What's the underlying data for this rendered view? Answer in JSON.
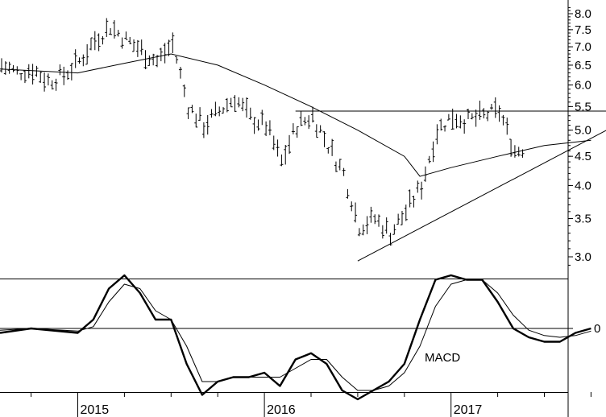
{
  "chart_data": [
    {
      "type": "ohlc",
      "panel": "price",
      "y_scale": "log",
      "ylim": [
        2.75,
        8.3
      ],
      "ytick_labels": [
        "8.0",
        "7.5",
        "7.0",
        "6.5",
        "6.0",
        "5.5",
        "5.0",
        "4.5",
        "4.0",
        "3.5",
        "3.0"
      ],
      "ytick_values": [
        8.0,
        7.5,
        7.0,
        6.5,
        6.0,
        5.5,
        5.0,
        4.5,
        4.0,
        3.5,
        3.0
      ],
      "xlim": [
        "2014-08",
        "2017-11"
      ],
      "xtick_labels": [
        "2015",
        "2016",
        "2017"
      ],
      "xtick_values": [
        "2015-01",
        "2016-01",
        "2017-01"
      ],
      "x_minor_ticks": [
        "2014-10",
        "2015-04",
        "2015-07",
        "2015-10",
        "2016-04",
        "2016-07",
        "2016-10",
        "2017-04",
        "2017-07",
        "2017-10"
      ],
      "close_anchors": [
        {
          "date": "2014-08",
          "close": 6.5
        },
        {
          "date": "2014-09",
          "close": 6.3
        },
        {
          "date": "2014-10",
          "close": 6.4
        },
        {
          "date": "2014-11",
          "close": 6.1
        },
        {
          "date": "2014-12",
          "close": 6.25
        },
        {
          "date": "2015-01",
          "close": 6.6
        },
        {
          "date": "2015-02",
          "close": 7.2
        },
        {
          "date": "2015-03",
          "close": 7.6
        },
        {
          "date": "2015-04",
          "close": 7.2
        },
        {
          "date": "2015-05",
          "close": 6.9
        },
        {
          "date": "2015-06",
          "close": 6.6
        },
        {
          "date": "2015-07",
          "close": 7.1
        },
        {
          "date": "2015-08",
          "close": 5.5
        },
        {
          "date": "2015-09",
          "close": 5.1
        },
        {
          "date": "2015-10",
          "close": 5.4
        },
        {
          "date": "2015-11",
          "close": 5.7
        },
        {
          "date": "2015-12",
          "close": 5.25
        },
        {
          "date": "2016-01",
          "close": 5.1
        },
        {
          "date": "2016-02",
          "close": 4.4
        },
        {
          "date": "2016-03",
          "close": 5.1
        },
        {
          "date": "2016-04",
          "close": 5.3
        },
        {
          "date": "2016-05",
          "close": 4.7
        },
        {
          "date": "2016-06",
          "close": 4.2
        },
        {
          "date": "2016-07",
          "close": 3.4
        },
        {
          "date": "2016-08",
          "close": 3.5
        },
        {
          "date": "2016-09",
          "close": 3.3
        },
        {
          "date": "2016-10",
          "close": 3.6
        },
        {
          "date": "2016-11",
          "close": 4.0
        },
        {
          "date": "2016-12",
          "close": 5.0
        },
        {
          "date": "2017-01",
          "close": 5.3
        },
        {
          "date": "2017-02",
          "close": 5.2
        },
        {
          "date": "2017-03",
          "close": 5.3
        },
        {
          "date": "2017-04",
          "close": 5.4
        },
        {
          "date": "2017-05",
          "close": 4.6
        },
        {
          "date": "2017-06",
          "close": 4.7
        },
        {
          "date": "2017-07",
          "close": 4.9
        },
        {
          "date": "2017-08",
          "close": 4.4
        },
        {
          "date": "2017-09",
          "close": 4.6
        },
        {
          "date": "2017-10",
          "close": 4.8
        }
      ],
      "moving_average": [
        {
          "date": "2014-08",
          "value": 6.4
        },
        {
          "date": "2015-01",
          "value": 6.3
        },
        {
          "date": "2015-04",
          "value": 6.55
        },
        {
          "date": "2015-07",
          "value": 6.8
        },
        {
          "date": "2015-10",
          "value": 6.5
        },
        {
          "date": "2016-01",
          "value": 6.0
        },
        {
          "date": "2016-04",
          "value": 5.5
        },
        {
          "date": "2016-07",
          "value": 5.0
        },
        {
          "date": "2016-10",
          "value": 4.5
        },
        {
          "date": "2016-11",
          "value": 4.15
        },
        {
          "date": "2017-01",
          "value": 4.3
        },
        {
          "date": "2017-04",
          "value": 4.5
        },
        {
          "date": "2017-07",
          "value": 4.7
        },
        {
          "date": "2017-10",
          "value": 4.8
        }
      ],
      "resistance_line": {
        "value": 5.4,
        "from": "2016-03",
        "to": "2017-11"
      },
      "support_line": {
        "from": {
          "date": "2016-07",
          "value": 2.95
        },
        "to": {
          "date": "2017-11",
          "value": 5.0
        }
      }
    },
    {
      "type": "line",
      "panel": "indicator",
      "annotation": "MACD",
      "ytick_labels": [
        "0"
      ],
      "ytick_values": [
        0
      ],
      "ylim": [
        -1.0,
        0.8
      ],
      "series": [
        {
          "style": "thick",
          "points": [
            {
              "date": "2014-08",
              "value": -0.05
            },
            {
              "date": "2014-10",
              "value": 0.0
            },
            {
              "date": "2015-01",
              "value": -0.05
            },
            {
              "date": "2015-02",
              "value": 0.1
            },
            {
              "date": "2015-03",
              "value": 0.45
            },
            {
              "date": "2015-04",
              "value": 0.6
            },
            {
              "date": "2015-05",
              "value": 0.4
            },
            {
              "date": "2015-06",
              "value": 0.1
            },
            {
              "date": "2015-07",
              "value": 0.1
            },
            {
              "date": "2015-08",
              "value": -0.4
            },
            {
              "date": "2015-09",
              "value": -0.75
            },
            {
              "date": "2015-10",
              "value": -0.6
            },
            {
              "date": "2015-11",
              "value": -0.55
            },
            {
              "date": "2015-12",
              "value": -0.55
            },
            {
              "date": "2016-01",
              "value": -0.5
            },
            {
              "date": "2016-02",
              "value": -0.65
            },
            {
              "date": "2016-03",
              "value": -0.35
            },
            {
              "date": "2016-04",
              "value": -0.28
            },
            {
              "date": "2016-05",
              "value": -0.4
            },
            {
              "date": "2016-06",
              "value": -0.7
            },
            {
              "date": "2016-07",
              "value": -0.8
            },
            {
              "date": "2016-08",
              "value": -0.7
            },
            {
              "date": "2016-09",
              "value": -0.6
            },
            {
              "date": "2016-10",
              "value": -0.4
            },
            {
              "date": "2016-11",
              "value": 0.1
            },
            {
              "date": "2016-12",
              "value": 0.55
            },
            {
              "date": "2017-01",
              "value": 0.6
            },
            {
              "date": "2017-02",
              "value": 0.55
            },
            {
              "date": "2017-03",
              "value": 0.55
            },
            {
              "date": "2017-04",
              "value": 0.3
            },
            {
              "date": "2017-05",
              "value": 0.0
            },
            {
              "date": "2017-06",
              "value": -0.1
            },
            {
              "date": "2017-07",
              "value": -0.15
            },
            {
              "date": "2017-08",
              "value": -0.15
            },
            {
              "date": "2017-09",
              "value": -0.05
            },
            {
              "date": "2017-10",
              "value": 0.0
            }
          ]
        },
        {
          "style": "thin",
          "points": [
            {
              "date": "2014-08",
              "value": -0.02
            },
            {
              "date": "2014-10",
              "value": 0.0
            },
            {
              "date": "2015-01",
              "value": -0.03
            },
            {
              "date": "2015-02",
              "value": 0.02
            },
            {
              "date": "2015-03",
              "value": 0.3
            },
            {
              "date": "2015-04",
              "value": 0.5
            },
            {
              "date": "2015-05",
              "value": 0.45
            },
            {
              "date": "2015-06",
              "value": 0.2
            },
            {
              "date": "2015-07",
              "value": 0.1
            },
            {
              "date": "2015-08",
              "value": -0.2
            },
            {
              "date": "2015-09",
              "value": -0.6
            },
            {
              "date": "2015-10",
              "value": -0.6
            },
            {
              "date": "2015-11",
              "value": -0.55
            },
            {
              "date": "2015-12",
              "value": -0.55
            },
            {
              "date": "2016-01",
              "value": -0.55
            },
            {
              "date": "2016-02",
              "value": -0.55
            },
            {
              "date": "2016-03",
              "value": -0.45
            },
            {
              "date": "2016-04",
              "value": -0.35
            },
            {
              "date": "2016-05",
              "value": -0.35
            },
            {
              "date": "2016-06",
              "value": -0.55
            },
            {
              "date": "2016-07",
              "value": -0.7
            },
            {
              "date": "2016-08",
              "value": -0.7
            },
            {
              "date": "2016-09",
              "value": -0.65
            },
            {
              "date": "2016-10",
              "value": -0.5
            },
            {
              "date": "2016-11",
              "value": -0.2
            },
            {
              "date": "2016-12",
              "value": 0.25
            },
            {
              "date": "2017-01",
              "value": 0.5
            },
            {
              "date": "2017-02",
              "value": 0.55
            },
            {
              "date": "2017-03",
              "value": 0.55
            },
            {
              "date": "2017-04",
              "value": 0.4
            },
            {
              "date": "2017-05",
              "value": 0.15
            },
            {
              "date": "2017-06",
              "value": -0.02
            },
            {
              "date": "2017-07",
              "value": -0.08
            },
            {
              "date": "2017-08",
              "value": -0.1
            },
            {
              "date": "2017-09",
              "value": -0.08
            },
            {
              "date": "2017-10",
              "value": -0.03
            }
          ]
        }
      ]
    }
  ]
}
